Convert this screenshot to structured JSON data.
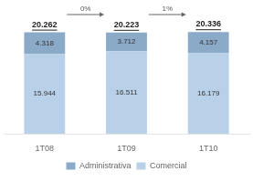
{
  "chart_data": {
    "type": "bar",
    "categories": [
      "1T08",
      "1T09",
      "1T10"
    ],
    "series": [
      {
        "name": "Comercial",
        "color": "#b8d0e8",
        "values": [
          15.944,
          16.511,
          16.179
        ]
      },
      {
        "name": "Administrativa",
        "color": "#8aaac8",
        "values": [
          4.318,
          3.712,
          4.157
        ]
      }
    ],
    "totals": [
      20.262,
      20.223,
      20.336
    ],
    "annotations": [
      "0%",
      "1%"
    ],
    "stacked": true,
    "data_labels": true,
    "ylim": [
      0,
      26
    ],
    "grid": false,
    "tick_labels": "x",
    "legend": "bottom"
  }
}
